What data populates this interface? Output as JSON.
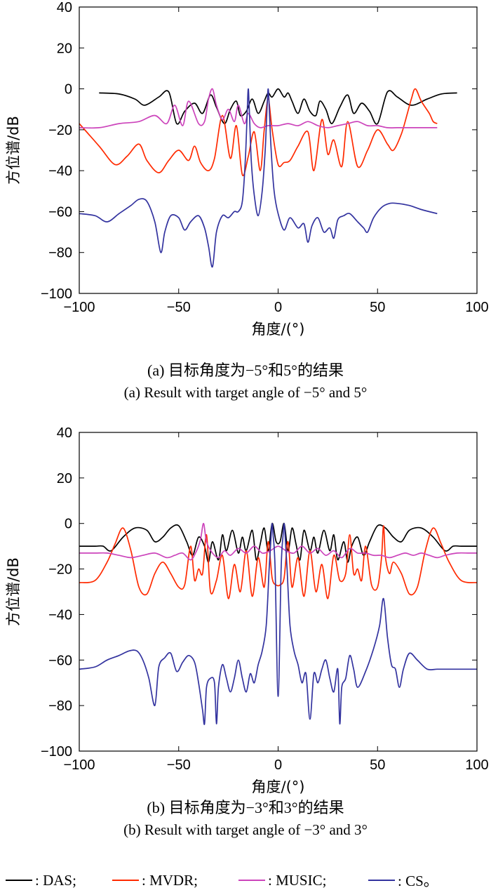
{
  "chart_data": [
    {
      "type": "line",
      "xlabel": "角度/(°)",
      "ylabel": "方位谱/dB",
      "xlim": [
        -100,
        100
      ],
      "ylim": [
        -100,
        40
      ],
      "xticks": [
        -100,
        -50,
        0,
        50,
        100
      ],
      "yticks": [
        40,
        20,
        0,
        -20,
        -40,
        -60,
        -80,
        -100
      ],
      "grid": false,
      "caption_zh": "(a) 目标角度为−5°和5°的结果",
      "caption_en": "(a) Result with target angle of −5° and 5°",
      "series": [
        {
          "name": "DAS",
          "color": "#000000",
          "x": [
            -90,
            -80,
            -72,
            -67,
            -60,
            -55,
            -51,
            -47,
            -42,
            -38,
            -34,
            -31,
            -27,
            -24,
            -21,
            -19,
            -16,
            -13,
            -10,
            -7,
            -5,
            -3,
            0,
            3,
            5,
            7,
            10,
            13,
            16,
            19,
            21,
            24,
            27,
            31,
            35,
            38,
            42,
            46,
            50,
            55,
            60,
            67,
            75,
            82,
            90
          ],
          "y": [
            -2,
            -2.5,
            -5,
            -8,
            -4,
            -1.5,
            -17,
            -11,
            -7,
            -12,
            -3,
            -9,
            -17,
            -10,
            -6,
            -13,
            -11,
            -5,
            -12,
            -6,
            -2,
            -4,
            0,
            -4,
            -2,
            -6,
            -12,
            -5,
            -11,
            -13,
            -6,
            -10,
            -17,
            -9,
            -3,
            -12,
            -7,
            -11,
            -17,
            -1.5,
            -4,
            -8,
            -5,
            -2.5,
            -2
          ]
        },
        {
          "name": "MVDR",
          "color": "#ff2a00",
          "x": [
            -100,
            -90,
            -82,
            -76,
            -70,
            -66,
            -60,
            -55,
            -50,
            -45,
            -42,
            -39,
            -35,
            -32,
            -28,
            -24,
            -21,
            -18,
            -15,
            -12,
            -9,
            -7,
            -5,
            -3,
            0,
            3,
            6,
            10,
            15,
            18,
            22,
            25,
            28,
            32,
            35,
            40,
            45,
            50,
            55,
            58,
            62,
            65,
            67,
            69,
            72,
            76,
            78,
            80
          ],
          "y": [
            -17,
            -28,
            -37,
            -33,
            -27,
            -35,
            -41,
            -35,
            -30,
            -35,
            -28,
            -36,
            -40,
            -34,
            -13,
            -34,
            -18,
            -42,
            -33,
            -21,
            -40,
            -20,
            -5,
            -20,
            -37,
            -36,
            -35,
            -28,
            -21,
            -40,
            -15,
            -32,
            -25,
            -38,
            -16,
            -38,
            -30,
            -20,
            -27,
            -30,
            -22,
            -12,
            -5,
            0,
            -6,
            -12,
            -16,
            -17
          ]
        },
        {
          "name": "MUSIC",
          "color": "#cc44bb",
          "x": [
            -100,
            -90,
            -80,
            -70,
            -62,
            -56,
            -52,
            -48,
            -45,
            -40,
            -37,
            -35,
            -33,
            -31,
            -28,
            -25,
            -22,
            -20,
            -17,
            -15,
            -12,
            -9,
            -5,
            0,
            5,
            10,
            15,
            20,
            25,
            30,
            35,
            40,
            45,
            50,
            55,
            60,
            65,
            70,
            75,
            80
          ],
          "y": [
            -19,
            -19,
            -17,
            -16,
            -13,
            -17,
            -8,
            -18,
            -6,
            -17,
            -16,
            -5,
            0,
            -8,
            -15,
            -10,
            -16,
            -8,
            -17,
            -12,
            -17,
            -19,
            -18,
            -18,
            -17,
            -18,
            -16,
            -18,
            -19,
            -18,
            -17,
            -16,
            -18,
            -18,
            -19,
            -19,
            -19,
            -19,
            -19,
            -19
          ]
        },
        {
          "name": "CS",
          "color": "#33339f",
          "x": [
            -100,
            -92,
            -86,
            -80,
            -74,
            -70,
            -66,
            -62,
            -59,
            -57,
            -54,
            -50,
            -47,
            -44,
            -40,
            -37,
            -35,
            -33,
            -31,
            -28,
            -25,
            -22,
            -20,
            -18,
            -16.5,
            -15.5,
            -15,
            -14.5,
            -13.5,
            -12,
            -10,
            -8,
            -6.5,
            -5.5,
            -5,
            -4.5,
            -3.5,
            -2,
            0,
            3,
            6,
            10,
            13,
            15,
            17,
            20,
            23,
            26,
            28,
            30,
            33,
            36,
            40,
            43,
            45,
            48,
            52,
            56,
            60,
            66,
            72,
            80
          ],
          "y": [
            -61,
            -62,
            -65,
            -61,
            -57,
            -54,
            -55,
            -65,
            -80,
            -70,
            -62,
            -63,
            -69,
            -65,
            -62,
            -68,
            -77,
            -87,
            -70,
            -62,
            -63,
            -60,
            -60,
            -55,
            -35,
            -10,
            0,
            -10,
            -35,
            -52,
            -62,
            -50,
            -30,
            -8,
            0,
            -8,
            -30,
            -50,
            -61,
            -69,
            -63,
            -68,
            -66,
            -75,
            -67,
            -63,
            -70,
            -68,
            -73,
            -64,
            -62,
            -61,
            -65,
            -68,
            -70,
            -63,
            -58,
            -56,
            -56,
            -57,
            -59,
            -61
          ]
        }
      ]
    },
    {
      "type": "line",
      "xlabel": "角度/(°)",
      "ylabel": "方位谱/dB",
      "xlim": [
        -100,
        100
      ],
      "ylim": [
        -100,
        40
      ],
      "xticks": [
        -100,
        -50,
        0,
        50,
        100
      ],
      "yticks": [
        40,
        20,
        0,
        -20,
        -40,
        -60,
        -80,
        -100
      ],
      "grid": false,
      "caption_zh": "(b) 目标角度为−3°和3°的结果",
      "caption_en": "(b) Result with target angle of −3° and 3°",
      "series": [
        {
          "name": "DAS",
          "color": "#000000",
          "x": [
            -100,
            -92,
            -88,
            -84,
            -78,
            -72,
            -66,
            -62,
            -58,
            -54,
            -50,
            -46,
            -43,
            -40,
            -37,
            -35,
            -33,
            -30,
            -28,
            -26,
            -23,
            -20,
            -18,
            -16,
            -13,
            -11,
            -9,
            -7,
            -5,
            -3,
            -1,
            1,
            3,
            5,
            7,
            9,
            11,
            13,
            16,
            18,
            20,
            23,
            26,
            28,
            30,
            33,
            35,
            37,
            40,
            43,
            46,
            50,
            54,
            58,
            62,
            66,
            72,
            78,
            84,
            88,
            92,
            100
          ],
          "y": [
            -10,
            -10,
            -10,
            -12,
            -6,
            -2,
            -3,
            -8,
            -6,
            -2,
            -1,
            -8,
            -14,
            -6,
            -10,
            -17,
            -8,
            -16,
            -5,
            -12,
            -3,
            -13,
            -6,
            -12,
            -3,
            -16,
            -9,
            -2,
            -12,
            0,
            -8,
            -8,
            0,
            -12,
            -2,
            -9,
            -16,
            -3,
            -12,
            -6,
            -13,
            -3,
            -12,
            -5,
            -16,
            -8,
            -17,
            -10,
            -6,
            -14,
            -8,
            -1,
            -2,
            -6,
            -8,
            -3,
            -2,
            -6,
            -12,
            -10,
            -10,
            -10
          ]
        },
        {
          "name": "MVDR",
          "color": "#ff2a00",
          "x": [
            -100,
            -92,
            -86,
            -82,
            -78,
            -74,
            -70,
            -66,
            -62,
            -58,
            -54,
            -50,
            -47,
            -44,
            -42,
            -40,
            -38,
            -36,
            -34,
            -31,
            -28,
            -25,
            -22,
            -19,
            -16,
            -13,
            -10,
            -7,
            -5,
            -3,
            -1,
            1,
            3,
            5,
            7,
            10,
            13,
            16,
            19,
            22,
            25,
            28,
            31,
            34,
            36,
            38,
            40,
            42,
            44,
            47,
            50,
            52,
            53,
            54,
            56,
            58,
            62,
            66,
            70,
            74,
            78,
            82,
            86,
            92,
            100
          ],
          "y": [
            -26,
            -25,
            -17,
            -9,
            -2,
            -12,
            -28,
            -31,
            -22,
            -17,
            -22,
            -28,
            -27,
            -10,
            -25,
            -20,
            -22,
            -5,
            -30,
            -25,
            -14,
            -33,
            -18,
            -30,
            -12,
            -32,
            -15,
            -28,
            -8,
            -24,
            -27,
            -27,
            -24,
            -8,
            -28,
            -15,
            -32,
            -12,
            -30,
            -18,
            -33,
            -14,
            -25,
            -22,
            -5,
            -22,
            -20,
            -25,
            -10,
            -27,
            -28,
            -15,
            -1,
            -15,
            -22,
            -17,
            -22,
            -31,
            -28,
            -12,
            -2,
            -9,
            -17,
            -25,
            -26
          ]
        },
        {
          "name": "MUSIC",
          "color": "#cc44bb",
          "x": [
            -100,
            -92,
            -86,
            -80,
            -74,
            -68,
            -62,
            -56,
            -52,
            -48,
            -44,
            -41,
            -39,
            -37.5,
            -36,
            -33,
            -30,
            -27,
            -24,
            -20,
            -16,
            -12,
            -8,
            -4,
            0,
            4,
            8,
            12,
            16,
            20,
            24,
            28,
            32,
            36,
            40,
            44,
            48,
            52,
            56,
            60,
            64,
            68,
            72,
            76,
            80,
            84,
            90,
            96,
            100
          ],
          "y": [
            -13,
            -13,
            -13,
            -14,
            -15,
            -14,
            -13,
            -15,
            -14,
            -13,
            -16,
            -12,
            -7,
            0,
            -8,
            -13,
            -15,
            -12,
            -14,
            -11,
            -13,
            -10,
            -13,
            -12,
            -10,
            -12,
            -13,
            -10,
            -13,
            -11,
            -14,
            -12,
            -15,
            -11,
            -13,
            -13,
            -14,
            -14,
            -15,
            -14,
            -13,
            -14,
            -13,
            -14,
            -15,
            -14,
            -13,
            -13,
            -13
          ]
        },
        {
          "name": "CS",
          "color": "#33339f",
          "x": [
            -100,
            -92,
            -86,
            -80,
            -75,
            -71,
            -68,
            -65,
            -62,
            -60,
            -57,
            -54,
            -51,
            -48,
            -45,
            -42,
            -40,
            -38,
            -37,
            -36,
            -34,
            -32,
            -31,
            -30,
            -28,
            -26,
            -24,
            -22,
            -20,
            -18,
            -16,
            -14,
            -12,
            -10,
            -8,
            -6,
            -4.5,
            -3.5,
            -3,
            -2.5,
            -1.5,
            0,
            1.5,
            2.5,
            3,
            3.5,
            4.5,
            6,
            8,
            10,
            12,
            14,
            16,
            18,
            20,
            22,
            24,
            26,
            28,
            30,
            31,
            32,
            34,
            36,
            38,
            40,
            44,
            48,
            51,
            53,
            55,
            57,
            59,
            61,
            63,
            66,
            70,
            75,
            80,
            86,
            92,
            100
          ],
          "y": [
            -64,
            -63,
            -60,
            -58,
            -56,
            -56,
            -60,
            -68,
            -80,
            -63,
            -59,
            -57,
            -65,
            -61,
            -58,
            -61,
            -70,
            -82,
            -88,
            -72,
            -68,
            -70,
            -88,
            -72,
            -62,
            -68,
            -74,
            -68,
            -60,
            -68,
            -74,
            -66,
            -70,
            -62,
            -56,
            -45,
            -20,
            -5,
            0,
            -5,
            -20,
            -76,
            -20,
            -5,
            0,
            -5,
            -20,
            -45,
            -56,
            -62,
            -70,
            -66,
            -86,
            -66,
            -70,
            -64,
            -60,
            -68,
            -74,
            -64,
            -88,
            -72,
            -68,
            -58,
            -64,
            -72,
            -65,
            -55,
            -45,
            -33,
            -50,
            -62,
            -64,
            -72,
            -64,
            -57,
            -60,
            -64,
            -64,
            -64,
            -64,
            -64
          ]
        }
      ]
    }
  ],
  "legend": [
    {
      "name": "DAS",
      "label": ": DAS;",
      "color": "#000000"
    },
    {
      "name": "MVDR",
      "label": ": MVDR;",
      "color": "#ff2a00"
    },
    {
      "name": "MUSIC",
      "label": ": MUSIC;",
      "color": "#cc44bb"
    },
    {
      "name": "CS",
      "label": ": CS。",
      "color": "#33339f"
    }
  ]
}
